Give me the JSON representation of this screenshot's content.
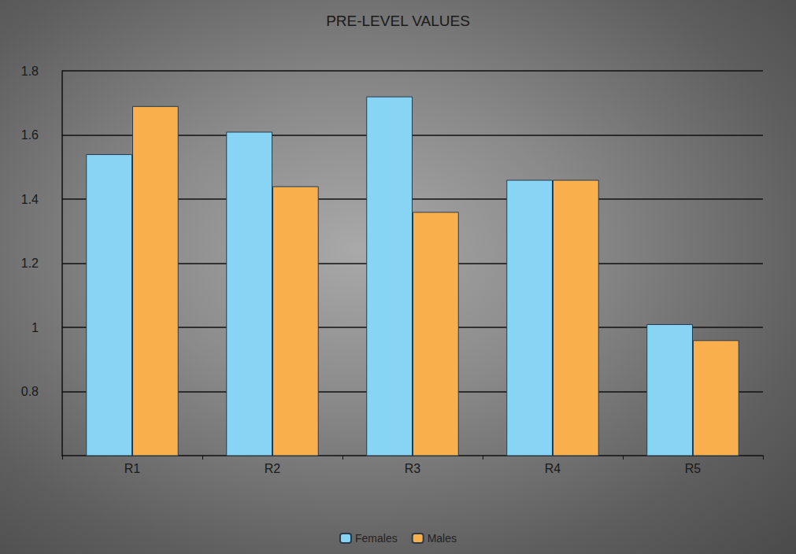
{
  "chart_data": {
    "type": "bar",
    "title": "PRE-LEVEL VALUES",
    "categories": [
      "R1",
      "R2",
      "R3",
      "R4",
      "R5"
    ],
    "series": [
      {
        "name": "Females",
        "color": "#87d4f5",
        "values": [
          1.54,
          1.61,
          1.72,
          1.46,
          1.01
        ]
      },
      {
        "name": "Males",
        "color": "#f9b04c",
        "values": [
          1.69,
          1.44,
          1.36,
          1.46,
          0.96
        ]
      }
    ],
    "ylim": [
      0.6,
      1.8
    ],
    "yticks": [
      0.8,
      1,
      1.2,
      1.4,
      1.6,
      1.8
    ],
    "grid": true,
    "legend": "bottom"
  }
}
